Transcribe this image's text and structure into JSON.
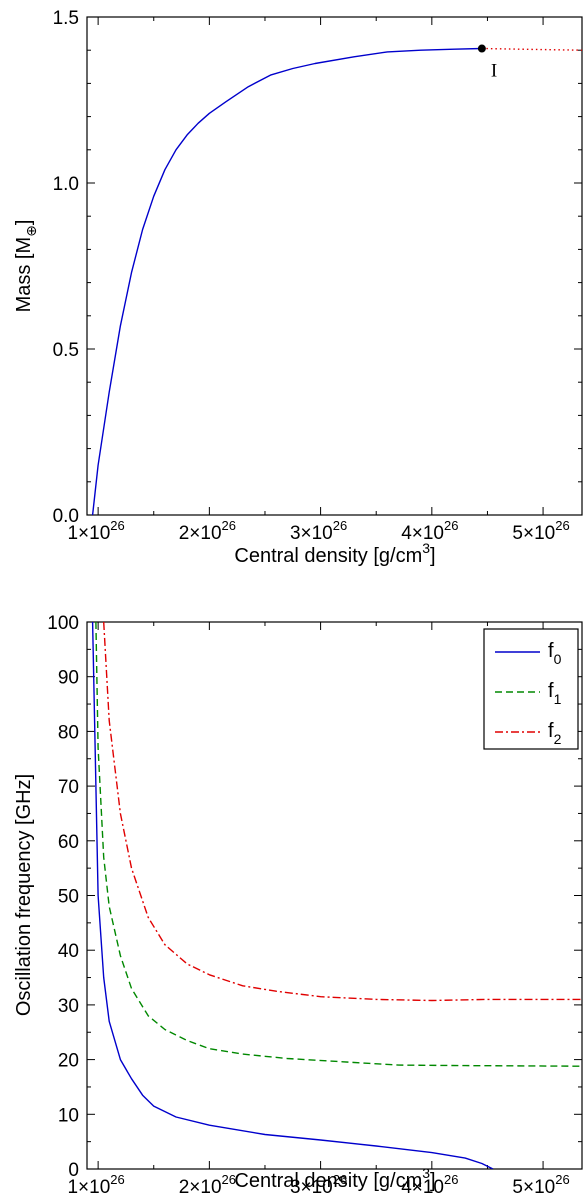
{
  "chart_data": [
    {
      "type": "line",
      "xlabel": "Central density  [g/cm",
      "xlabel_exp": "3",
      "xlabel_close": "]",
      "ylabel": "Mass  [M",
      "ylabel_sub": "⊕",
      "ylabel_close": "]",
      "xlim": [
        9e+25,
        5.35e+26
      ],
      "ylim": [
        0,
        1.5
      ],
      "xticks": [
        {
          "value": 1e+26,
          "mant": "1×10",
          "exp": "26"
        },
        {
          "value": 2e+26,
          "mant": "2×10",
          "exp": "26"
        },
        {
          "value": 3e+26,
          "mant": "3×10",
          "exp": "26"
        },
        {
          "value": 4e+26,
          "mant": "4×10",
          "exp": "26"
        },
        {
          "value": 5e+26,
          "mant": "5×10",
          "exp": "26"
        }
      ],
      "yticks": [
        {
          "value": 0,
          "label": "0.0"
        },
        {
          "value": 0.5,
          "label": "0.5"
        },
        {
          "value": 1.0,
          "label": "1.0"
        },
        {
          "value": 1.5,
          "label": "1.5"
        }
      ],
      "series": [
        {
          "color": "#0000cc",
          "style": "solid",
          "x": [
            9.5e+25,
            1e+26,
            1.1e+26,
            1.2e+26,
            1.3e+26,
            1.4e+26,
            1.5e+26,
            1.6e+26,
            1.7e+26,
            1.8e+26,
            1.9e+26,
            2e+26,
            2.15e+26,
            2.35e+26,
            2.55e+26,
            2.75e+26,
            2.95e+26,
            3.3e+26,
            3.6e+26,
            3.9e+26,
            4.2e+26,
            4.45e+26
          ],
          "y": [
            0.0,
            0.15,
            0.37,
            0.57,
            0.73,
            0.86,
            0.96,
            1.04,
            1.1,
            1.145,
            1.18,
            1.21,
            1.245,
            1.29,
            1.325,
            1.345,
            1.36,
            1.38,
            1.395,
            1.4,
            1.403,
            1.405
          ]
        },
        {
          "color": "#e00000",
          "style": "dotted",
          "x": [
            4.45e+26,
            4.8e+26,
            5.35e+26
          ],
          "y": [
            1.405,
            1.403,
            1.4
          ]
        }
      ],
      "annotations": [
        {
          "text": "I",
          "x": 4.45e+26,
          "y": 1.405
        }
      ]
    },
    {
      "type": "line",
      "xlabel": "Central density  [g/cm",
      "xlabel_exp": "3",
      "xlabel_close": "]",
      "ylabel": "Oscillation frequency  [GHz]",
      "xlim": [
        9e+25,
        5.35e+26
      ],
      "ylim": [
        0,
        100
      ],
      "xticks": [
        {
          "value": 1e+26,
          "mant": "1×10",
          "exp": "26"
        },
        {
          "value": 2e+26,
          "mant": "2×10",
          "exp": "26"
        },
        {
          "value": 3e+26,
          "mant": "3×10",
          "exp": "26"
        },
        {
          "value": 4e+26,
          "mant": "4×10",
          "exp": "26"
        },
        {
          "value": 5e+26,
          "mant": "5×10",
          "exp": "26"
        }
      ],
      "yticks": [
        {
          "value": 0,
          "label": "0"
        },
        {
          "value": 10,
          "label": "10"
        },
        {
          "value": 20,
          "label": "20"
        },
        {
          "value": 30,
          "label": "30"
        },
        {
          "value": 40,
          "label": "40"
        },
        {
          "value": 50,
          "label": "50"
        },
        {
          "value": 60,
          "label": "60"
        },
        {
          "value": 70,
          "label": "70"
        },
        {
          "value": 80,
          "label": "80"
        },
        {
          "value": 90,
          "label": "90"
        },
        {
          "value": 100,
          "label": "100"
        }
      ],
      "legend": "top-right",
      "series": [
        {
          "name": "f",
          "sub": "0",
          "color": "#0000cc",
          "style": "solid",
          "x": [
            9.5e+25,
            9.7e+25,
            1e+26,
            1.05e+26,
            1.1e+26,
            1.2e+26,
            1.3e+26,
            1.4e+26,
            1.5e+26,
            1.7e+26,
            2e+26,
            2.5e+26,
            3e+26,
            3.5e+26,
            4e+26,
            4.3e+26,
            4.45e+26,
            4.55e+26
          ],
          "y": [
            100,
            80,
            50,
            35,
            27,
            20,
            16.5,
            13.5,
            11.5,
            9.5,
            8,
            6.3,
            5.3,
            4.2,
            3,
            2,
            1,
            0
          ]
        },
        {
          "name": "f",
          "sub": "1",
          "color": "#008800",
          "style": "dashed",
          "x": [
            9.8e+25,
            1e+26,
            1.05e+26,
            1.1e+26,
            1.2e+26,
            1.3e+26,
            1.45e+26,
            1.6e+26,
            1.8e+26,
            2e+26,
            2.3e+26,
            2.7e+26,
            3.2e+26,
            3.7e+26,
            4.3e+26,
            5.35e+26
          ],
          "y": [
            100,
            77,
            57,
            48,
            39,
            33,
            28,
            25.5,
            23.5,
            22,
            21,
            20.2,
            19.6,
            19,
            18.9,
            18.8
          ]
        },
        {
          "name": "f",
          "sub": "2",
          "color": "#e00000",
          "style": "dashdot",
          "x": [
            1.05e+26,
            1.1e+26,
            1.2e+26,
            1.3e+26,
            1.45e+26,
            1.6e+26,
            1.8e+26,
            2e+26,
            2.3e+26,
            2.6e+26,
            3e+26,
            3.5e+26,
            4e+26,
            4.5e+26,
            5.35e+26
          ],
          "y": [
            100,
            82,
            65,
            55,
            46,
            41,
            37.5,
            35.5,
            33.5,
            32.5,
            31.5,
            31,
            30.8,
            31,
            31
          ]
        }
      ]
    }
  ]
}
